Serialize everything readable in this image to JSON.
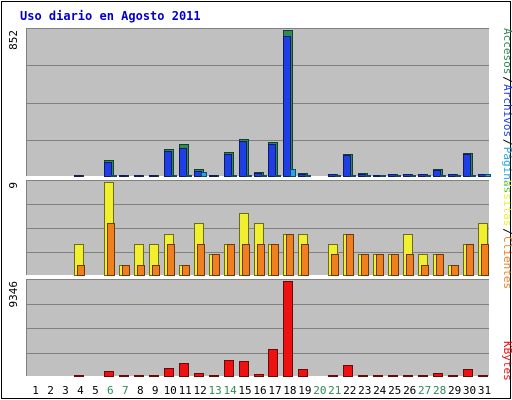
{
  "chart_data": {
    "type": "bar",
    "title": "Uso diario en Agosto 2011",
    "categories": [
      "1",
      "2",
      "3",
      "4",
      "5",
      "6",
      "7",
      "8",
      "9",
      "10",
      "11",
      "12",
      "13",
      "14",
      "15",
      "16",
      "17",
      "18",
      "19",
      "20",
      "21",
      "22",
      "23",
      "24",
      "25",
      "26",
      "27",
      "28",
      "29",
      "30",
      "31"
    ],
    "weekend_days": [
      "6",
      "7",
      "13",
      "14",
      "20",
      "21",
      "27",
      "28"
    ],
    "panels": [
      {
        "id": "top",
        "ymax_label": "852",
        "ymax": 852,
        "series": [
          {
            "name": "Accesos",
            "color": "#2e8b57",
            "values": [
              0,
              0,
              0,
              6,
              0,
              93,
              6,
              6,
              6,
              155,
              186,
              38,
              6,
              140,
              217,
              25,
              198,
              852,
              15,
              0,
              12,
              126,
              15,
              6,
              12,
              12,
              12,
              43,
              12,
              136,
              12
            ]
          },
          {
            "name": "Archivos",
            "color": "#1f3fe6",
            "values": [
              0,
              0,
              0,
              6,
              0,
              81,
              6,
              6,
              6,
              146,
              164,
              31,
              6,
              130,
              202,
              19,
              189,
              817,
              12,
              0,
              9,
              120,
              12,
              6,
              9,
              9,
              9,
              37,
              9,
              127,
              9
            ]
          },
          {
            "name": "Páginas",
            "color": "#29a6e0",
            "values": [
              0,
              0,
              0,
              0,
              0,
              6,
              0,
              0,
              0,
              6,
              6,
              25,
              0,
              6,
              6,
              6,
              6,
              40,
              6,
              0,
              3,
              6,
              3,
              3,
              3,
              3,
              3,
              6,
              3,
              6,
              12
            ]
          }
        ]
      },
      {
        "id": "middle",
        "ymax_label": "9",
        "ymax": 9,
        "series": [
          {
            "name": "Visitas",
            "color": "#f0f030",
            "values": [
              0,
              0,
              0,
              3,
              0,
              9,
              1,
              3,
              3,
              4,
              1,
              5,
              2,
              3,
              6,
              5,
              3,
              4,
              4,
              0,
              3,
              4,
              2,
              2,
              2,
              4,
              2,
              2,
              1,
              3,
              5
            ]
          },
          {
            "name": "Clientes",
            "color": "#f07f20",
            "values": [
              0,
              0,
              0,
              1,
              0,
              5,
              1,
              1,
              1,
              3,
              1,
              3,
              2,
              3,
              3,
              3,
              3,
              4,
              3,
              0,
              2,
              4,
              2,
              2,
              2,
              2,
              1,
              2,
              1,
              3,
              3
            ]
          }
        ]
      },
      {
        "id": "bottom",
        "ymax_label": "9346",
        "ymax": 9346,
        "series": [
          {
            "name": "KBytes",
            "color": "#ee1111",
            "values": [
              0,
              0,
              0,
              80,
              0,
              520,
              80,
              80,
              80,
              800,
              1250,
              260,
              80,
              1600,
              1450,
              150,
              2650,
              9346,
              690,
              0,
              120,
              1040,
              80,
              80,
              80,
              80,
              80,
              300,
              80,
              700,
              80
            ]
          }
        ]
      }
    ],
    "legend": [
      {
        "text": "Accesos",
        "color": "#2e8b57"
      },
      {
        "text": "Archivos",
        "color": "#1f3fe6"
      },
      {
        "text": "Páginas",
        "color": "#29a6e0"
      },
      {
        "text": "Visitas",
        "color": "#f0f030"
      },
      {
        "text": "Clientes",
        "color": "#f07f20"
      },
      {
        "text": "KBytes",
        "color": "#ee1111"
      }
    ],
    "colors": {
      "plot_bg": "#c0c0c0",
      "title": "#0000cc",
      "weekday_tick": "#000000",
      "weekend_tick": "#2e8b57",
      "grid": "#808080"
    }
  }
}
